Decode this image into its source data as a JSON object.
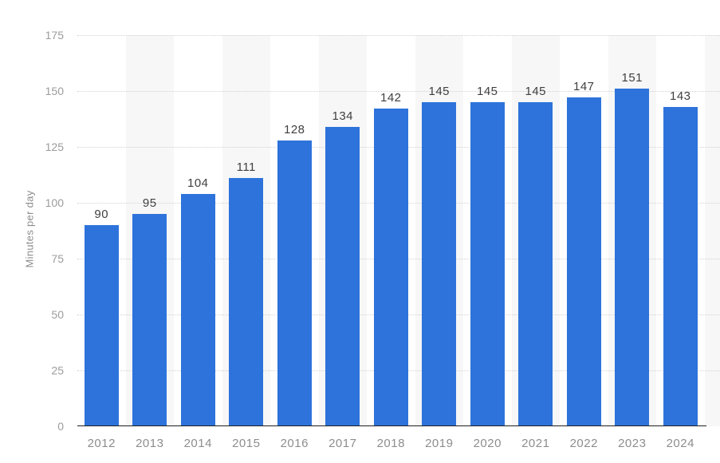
{
  "chart_data": {
    "type": "bar",
    "title": "",
    "categories": [
      "2012",
      "2013",
      "2014",
      "2015",
      "2016",
      "2017",
      "2018",
      "2019",
      "2020",
      "2021",
      "2022",
      "2023",
      "2024"
    ],
    "values": [
      90,
      95,
      104,
      111,
      128,
      134,
      142,
      145,
      145,
      145,
      147,
      151,
      143
    ],
    "xlabel": "",
    "ylabel": "Minutes per day",
    "ylim": [
      0,
      175
    ],
    "yticks": [
      0,
      25,
      50,
      75,
      100,
      125,
      150,
      175
    ],
    "grid": "horizontal-dotted",
    "legend": "none",
    "plot_bands": "alternating vertical column shading starting with second column",
    "value_labels": "above each bar"
  },
  "colors": {
    "bar": "#2d73db",
    "band": "#f7f7f7",
    "grid": "#d2d2d2",
    "axis_line": "#1f1f1f",
    "y_tick_label": "#9c9c9c",
    "x_tick_label": "#8d8d8d",
    "value_label": "#3f3f3f",
    "background": "#ffffff"
  }
}
